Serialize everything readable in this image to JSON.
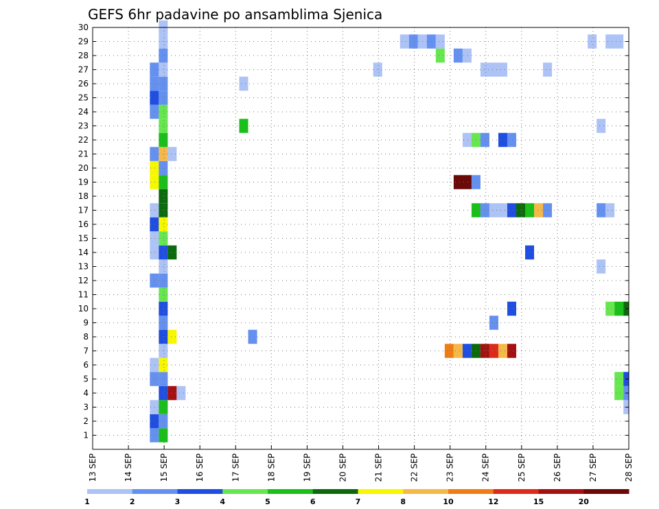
{
  "chart_data": {
    "type": "heatmap",
    "title": "GEFS 6hr padavine po ansamblima Sjenica",
    "x_ticks": [
      "13 SEP",
      "14 SEP",
      "15 SEP",
      "16 SEP",
      "17 SEP",
      "18 SEP",
      "19 SEP",
      "20 SEP",
      "21 SEP",
      "22 SEP",
      "23 SEP",
      "24 SEP",
      "25 SEP",
      "26 SEP",
      "27 SEP",
      "28 SEP"
    ],
    "y_ticks": [
      "1",
      "2",
      "3",
      "4",
      "5",
      "6",
      "7",
      "8",
      "9",
      "10",
      "11",
      "12",
      "13",
      "14",
      "15",
      "16",
      "17",
      "18",
      "19",
      "20",
      "21",
      "22",
      "23",
      "24",
      "25",
      "26",
      "27",
      "28",
      "29",
      "30"
    ],
    "xlim": [
      0,
      15
    ],
    "ylim": [
      0,
      30
    ],
    "grid": true,
    "legend": {
      "placement": "bottom",
      "labels": [
        "1",
        "2",
        "3",
        "4",
        "5",
        "6",
        "7",
        "8",
        "10",
        "12",
        "15",
        "20"
      ],
      "colors": [
        "#adc2f5",
        "#6490ef",
        "#1f4ee0",
        "#66e64f",
        "#1abf1a",
        "#0c6a0c",
        "#f7f700",
        "#f5b94a",
        "#f07c14",
        "#dd2a1a",
        "#a41111",
        "#6b0808"
      ]
    },
    "cells_note": "x = time in days since 13 SEP, w = width in days, y = ensemble member, c = legend color index",
    "cells": [
      {
        "x": 1.6,
        "y": 1,
        "w": 0.25,
        "c": 1
      },
      {
        "x": 1.6,
        "y": 2,
        "w": 0.25,
        "c": 2
      },
      {
        "x": 1.6,
        "y": 3,
        "w": 0.25,
        "c": 0
      },
      {
        "x": 1.6,
        "y": 5,
        "w": 0.25,
        "c": 1
      },
      {
        "x": 1.6,
        "y": 6,
        "w": 0.25,
        "c": 0
      },
      {
        "x": 1.6,
        "y": 12,
        "w": 0.25,
        "c": 1
      },
      {
        "x": 1.6,
        "y": 14,
        "w": 0.25,
        "c": 0
      },
      {
        "x": 1.6,
        "y": 15,
        "w": 0.25,
        "c": 0
      },
      {
        "x": 1.6,
        "y": 16,
        "w": 0.25,
        "c": 2
      },
      {
        "x": 1.6,
        "y": 17,
        "w": 0.25,
        "c": 0
      },
      {
        "x": 1.6,
        "y": 19,
        "w": 0.25,
        "c": 6
      },
      {
        "x": 1.6,
        "y": 20,
        "w": 0.25,
        "c": 6
      },
      {
        "x": 1.6,
        "y": 21,
        "w": 0.25,
        "c": 1
      },
      {
        "x": 1.6,
        "y": 24,
        "w": 0.25,
        "c": 1
      },
      {
        "x": 1.6,
        "y": 25,
        "w": 0.25,
        "c": 2
      },
      {
        "x": 1.6,
        "y": 26,
        "w": 0.25,
        "c": 1
      },
      {
        "x": 1.6,
        "y": 27,
        "w": 0.25,
        "c": 1
      },
      {
        "x": 1.85,
        "y": 1,
        "w": 0.25,
        "c": 4
      },
      {
        "x": 1.85,
        "y": 2,
        "w": 0.25,
        "c": 1
      },
      {
        "x": 1.85,
        "y": 3,
        "w": 0.25,
        "c": 4
      },
      {
        "x": 1.85,
        "y": 4,
        "w": 0.25,
        "c": 2
      },
      {
        "x": 1.85,
        "y": 5,
        "w": 0.25,
        "c": 1
      },
      {
        "x": 1.85,
        "y": 6,
        "w": 0.25,
        "c": 6
      },
      {
        "x": 1.85,
        "y": 7,
        "w": 0.25,
        "c": 0
      },
      {
        "x": 1.85,
        "y": 8,
        "w": 0.25,
        "c": 2
      },
      {
        "x": 1.85,
        "y": 9,
        "w": 0.25,
        "c": 1
      },
      {
        "x": 1.85,
        "y": 10,
        "w": 0.25,
        "c": 2
      },
      {
        "x": 1.85,
        "y": 11,
        "w": 0.25,
        "c": 3
      },
      {
        "x": 1.85,
        "y": 12,
        "w": 0.25,
        "c": 1
      },
      {
        "x": 1.85,
        "y": 13,
        "w": 0.25,
        "c": 0
      },
      {
        "x": 1.85,
        "y": 14,
        "w": 0.25,
        "c": 2
      },
      {
        "x": 1.85,
        "y": 15,
        "w": 0.25,
        "c": 3
      },
      {
        "x": 1.85,
        "y": 16,
        "w": 0.25,
        "c": 6
      },
      {
        "x": 1.85,
        "y": 17,
        "w": 0.25,
        "c": 5
      },
      {
        "x": 1.85,
        "y": 18,
        "w": 0.25,
        "c": 5
      },
      {
        "x": 1.85,
        "y": 19,
        "w": 0.25,
        "c": 4
      },
      {
        "x": 1.85,
        "y": 20,
        "w": 0.25,
        "c": 1
      },
      {
        "x": 1.85,
        "y": 21,
        "w": 0.25,
        "c": 7
      },
      {
        "x": 1.85,
        "y": 22,
        "w": 0.25,
        "c": 4
      },
      {
        "x": 1.85,
        "y": 23,
        "w": 0.25,
        "c": 3
      },
      {
        "x": 1.85,
        "y": 24,
        "w": 0.25,
        "c": 3
      },
      {
        "x": 1.85,
        "y": 25,
        "w": 0.25,
        "c": 1
      },
      {
        "x": 1.85,
        "y": 26,
        "w": 0.25,
        "c": 1
      },
      {
        "x": 1.85,
        "y": 27,
        "w": 0.25,
        "c": 0
      },
      {
        "x": 1.85,
        "y": 28,
        "w": 0.25,
        "c": 1
      },
      {
        "x": 1.85,
        "y": 29,
        "w": 0.25,
        "c": 0
      },
      {
        "x": 1.85,
        "y": 30,
        "w": 0.25,
        "c": 0
      },
      {
        "x": 2.1,
        "y": 4,
        "w": 0.25,
        "c": 10
      },
      {
        "x": 2.1,
        "y": 8,
        "w": 0.25,
        "c": 6
      },
      {
        "x": 2.1,
        "y": 14,
        "w": 0.25,
        "c": 5
      },
      {
        "x": 2.1,
        "y": 21,
        "w": 0.25,
        "c": 0
      },
      {
        "x": 2.35,
        "y": 4,
        "w": 0.25,
        "c": 0
      },
      {
        "x": 4.1,
        "y": 23,
        "w": 0.25,
        "c": 4
      },
      {
        "x": 4.1,
        "y": 26,
        "w": 0.25,
        "c": 0
      },
      {
        "x": 4.35,
        "y": 8,
        "w": 0.25,
        "c": 1
      },
      {
        "x": 7.85,
        "y": 27,
        "w": 0.25,
        "c": 0
      },
      {
        "x": 8.6,
        "y": 29,
        "w": 0.25,
        "c": 0
      },
      {
        "x": 8.85,
        "y": 29,
        "w": 0.25,
        "c": 1
      },
      {
        "x": 9.1,
        "y": 29,
        "w": 0.25,
        "c": 0
      },
      {
        "x": 9.35,
        "y": 29,
        "w": 0.25,
        "c": 1
      },
      {
        "x": 9.6,
        "y": 29,
        "w": 0.25,
        "c": 0
      },
      {
        "x": 9.6,
        "y": 28,
        "w": 0.25,
        "c": 3
      },
      {
        "x": 9.85,
        "y": 7,
        "w": 0.25,
        "c": 8
      },
      {
        "x": 10.1,
        "y": 7,
        "w": 0.25,
        "c": 7
      },
      {
        "x": 10.35,
        "y": 7,
        "w": 0.25,
        "c": 2
      },
      {
        "x": 10.6,
        "y": 7,
        "w": 0.25,
        "c": 5
      },
      {
        "x": 10.85,
        "y": 7,
        "w": 0.25,
        "c": 10
      },
      {
        "x": 11.1,
        "y": 7,
        "w": 0.25,
        "c": 9
      },
      {
        "x": 11.35,
        "y": 7,
        "w": 0.25,
        "c": 7
      },
      {
        "x": 11.6,
        "y": 7,
        "w": 0.25,
        "c": 10
      },
      {
        "x": 10.1,
        "y": 19,
        "w": 0.5,
        "c": 11
      },
      {
        "x": 10.6,
        "y": 19,
        "w": 0.25,
        "c": 1
      },
      {
        "x": 10.1,
        "y": 28,
        "w": 0.25,
        "c": 1
      },
      {
        "x": 10.35,
        "y": 28,
        "w": 0.25,
        "c": 0
      },
      {
        "x": 10.35,
        "y": 22,
        "w": 0.25,
        "c": 0
      },
      {
        "x": 10.6,
        "y": 22,
        "w": 0.25,
        "c": 3
      },
      {
        "x": 10.85,
        "y": 22,
        "w": 0.25,
        "c": 1
      },
      {
        "x": 11.35,
        "y": 22,
        "w": 0.25,
        "c": 2
      },
      {
        "x": 11.6,
        "y": 22,
        "w": 0.25,
        "c": 1
      },
      {
        "x": 10.6,
        "y": 17,
        "w": 0.25,
        "c": 4
      },
      {
        "x": 10.85,
        "y": 17,
        "w": 0.25,
        "c": 1
      },
      {
        "x": 11.1,
        "y": 17,
        "w": 0.5,
        "c": 0
      },
      {
        "x": 11.6,
        "y": 17,
        "w": 0.25,
        "c": 2
      },
      {
        "x": 11.85,
        "y": 17,
        "w": 0.25,
        "c": 5
      },
      {
        "x": 12.1,
        "y": 17,
        "w": 0.25,
        "c": 4
      },
      {
        "x": 12.35,
        "y": 17,
        "w": 0.25,
        "c": 7
      },
      {
        "x": 12.6,
        "y": 17,
        "w": 0.25,
        "c": 1
      },
      {
        "x": 10.85,
        "y": 27,
        "w": 0.75,
        "c": 0
      },
      {
        "x": 11.1,
        "y": 9,
        "w": 0.25,
        "c": 1
      },
      {
        "x": 11.6,
        "y": 10,
        "w": 0.25,
        "c": 2
      },
      {
        "x": 12.1,
        "y": 14,
        "w": 0.25,
        "c": 2
      },
      {
        "x": 12.6,
        "y": 27,
        "w": 0.25,
        "c": 0
      },
      {
        "x": 13.85,
        "y": 29,
        "w": 0.25,
        "c": 0
      },
      {
        "x": 14.1,
        "y": 23,
        "w": 0.25,
        "c": 0
      },
      {
        "x": 14.1,
        "y": 13,
        "w": 0.25,
        "c": 0
      },
      {
        "x": 14.1,
        "y": 17,
        "w": 0.25,
        "c": 1
      },
      {
        "x": 14.35,
        "y": 17,
        "w": 0.25,
        "c": 0
      },
      {
        "x": 14.35,
        "y": 29,
        "w": 0.5,
        "c": 0
      },
      {
        "x": 14.35,
        "y": 10,
        "w": 0.25,
        "c": 3
      },
      {
        "x": 14.6,
        "y": 10,
        "w": 0.25,
        "c": 4
      },
      {
        "x": 14.85,
        "y": 10,
        "w": 0.15,
        "c": 5
      },
      {
        "x": 14.6,
        "y": 4,
        "w": 0.25,
        "c": 3
      },
      {
        "x": 14.6,
        "y": 5,
        "w": 0.25,
        "c": 3
      },
      {
        "x": 14.85,
        "y": 4,
        "w": 0.15,
        "c": 1
      },
      {
        "x": 14.85,
        "y": 5,
        "w": 0.15,
        "c": 2
      },
      {
        "x": 14.85,
        "y": 3,
        "w": 0.15,
        "c": 0
      }
    ]
  }
}
